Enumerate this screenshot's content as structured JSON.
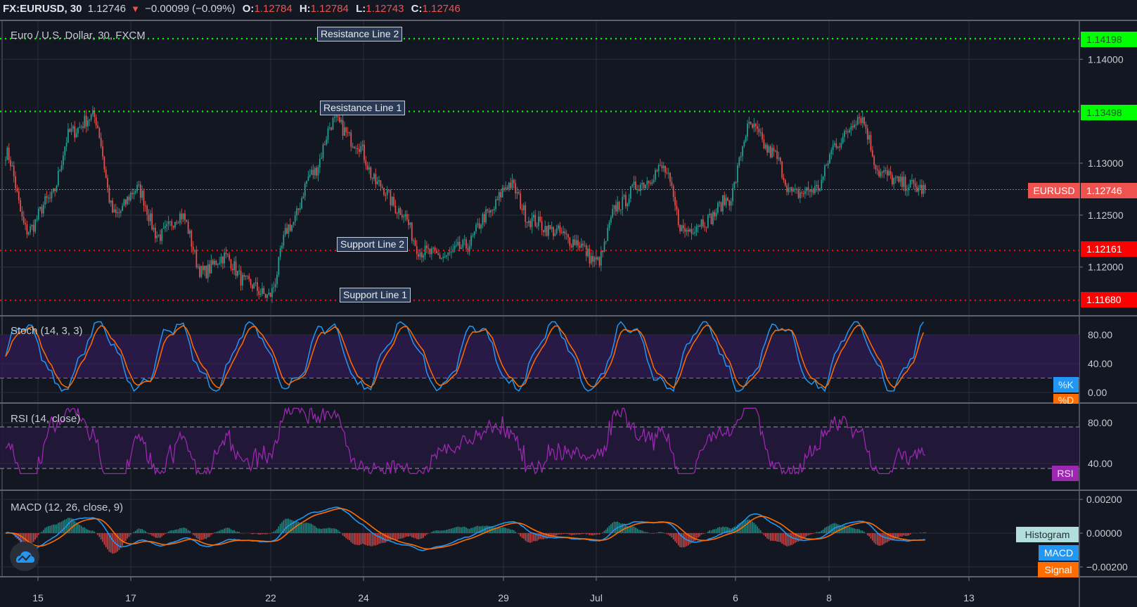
{
  "header": {
    "symbol": "FX:EURUSD, 30",
    "last": "1.12746",
    "direction_icon": "triangle-down-icon",
    "change": "−0.00099 (−0.09%)",
    "open_label": "O:",
    "open": "1.12784",
    "high_label": "H:",
    "high": "1.12784",
    "low_label": "L:",
    "low": "1.12743",
    "close_label": "C:",
    "close": "1.12746"
  },
  "main_pane": {
    "title": "Euro / U.S. Dollar, 30, FXCM",
    "price_axis": [
      "1.14000",
      "1.13000",
      "1.12500",
      "1.12000"
    ],
    "current_price": {
      "symbol": "EURUSD",
      "value": "1.12746",
      "color": "#ef5350"
    },
    "levels": [
      {
        "label": "Resistance Line 2",
        "value": "1.14198",
        "color": "#00ff00"
      },
      {
        "label": "Resistance Line 1",
        "value": "1.13498",
        "color": "#00ff00"
      },
      {
        "label": "Support Line 2",
        "value": "1.12161",
        "color": "#ff0000"
      },
      {
        "label": "Support Line 1",
        "value": "1.11680",
        "color": "#ff0000"
      }
    ]
  },
  "stoch_pane": {
    "title": "Stoch (14, 3, 3)",
    "axis": [
      "80.00",
      "40.00",
      "0.00"
    ],
    "k_label": "%K",
    "k_color": "#2196f3",
    "d_label": "%D",
    "d_color": "#ff6d00"
  },
  "rsi_pane": {
    "title": "RSI (14, close)",
    "axis": [
      "80.00",
      "40.00"
    ],
    "rsi_label": "RSI",
    "rsi_color": "#9c27b0"
  },
  "macd_pane": {
    "title": "MACD (12, 26, close, 9)",
    "axis": [
      "0.00200",
      "0.00000",
      "−0.00200"
    ],
    "histogram_label": "Histogram",
    "macd_label": "MACD",
    "signal_label": "Signal"
  },
  "time_axis": [
    "15",
    "17",
    "22",
    "24",
    "29",
    "Jul",
    "6",
    "8",
    "13"
  ],
  "logo_icon": "tradingview-cloud-icon",
  "chart_data": {
    "type": "candlestick",
    "title": "Euro / U.S. Dollar, 30, FXCM",
    "symbol": "FX:EURUSD",
    "interval": "30",
    "ohlc_last": {
      "open": 1.12784,
      "high": 1.12784,
      "low": 1.12743,
      "close": 1.12746
    },
    "x_ticks": [
      "15",
      "17",
      "22",
      "24",
      "29",
      "Jul",
      "6",
      "8",
      "13"
    ],
    "y_ticks": [
      1.12,
      1.125,
      1.13,
      1.14
    ],
    "ylim": [
      1.116,
      1.143
    ],
    "horizontal_lines": [
      {
        "name": "Resistance Line 2",
        "y": 1.14198
      },
      {
        "name": "Resistance Line 1",
        "y": 1.13498
      },
      {
        "name": "Support Line 2",
        "y": 1.12161
      },
      {
        "name": "Support Line 1",
        "y": 1.1168
      }
    ],
    "price_path_keypoints": {
      "x": [
        "15",
        "15",
        "15",
        "16",
        "16",
        "17",
        "17",
        "18",
        "18",
        "19",
        "19",
        "21",
        "22",
        "22",
        "23",
        "23",
        "24",
        "24",
        "25",
        "25",
        "26",
        "26",
        "29",
        "29",
        "29",
        "30",
        "30",
        "Jul 1",
        "Jul 1",
        "Jul 2",
        "Jul 2",
        "Jul 3",
        "Jul 3",
        "Jul 6",
        "Jul 6",
        "Jul 7",
        "Jul 7",
        "Jul 8",
        "Jul 8",
        "Jul 9",
        "Jul 9",
        "Jul 10",
        "Jul 10"
      ],
      "close": [
        1.131,
        1.1235,
        1.1265,
        1.133,
        1.1345,
        1.125,
        1.1275,
        1.123,
        1.125,
        1.1195,
        1.121,
        1.1185,
        1.1172,
        1.124,
        1.129,
        1.134,
        1.132,
        1.128,
        1.1255,
        1.1215,
        1.121,
        1.122,
        1.125,
        1.128,
        1.1245,
        1.1235,
        1.1225,
        1.1205,
        1.126,
        1.128,
        1.1295,
        1.1235,
        1.1245,
        1.1265,
        1.1335,
        1.131,
        1.127,
        1.1275,
        1.132,
        1.1345,
        1.129,
        1.128,
        1.12746
      ]
    },
    "indicators": [
      {
        "name": "Stoch (14, 3, 3)",
        "series": [
          "%K",
          "%D"
        ],
        "bands": [
          20,
          80
        ],
        "ylim": [
          0,
          100
        ]
      },
      {
        "name": "RSI (14, close)",
        "series": [
          "RSI"
        ],
        "bands": [
          30,
          70
        ],
        "ylim": [
          20,
          90
        ]
      },
      {
        "name": "MACD (12, 26, close, 9)",
        "series": [
          "MACD",
          "Signal",
          "Histogram"
        ],
        "ylim": [
          -0.0025,
          0.0025
        ]
      }
    ]
  }
}
